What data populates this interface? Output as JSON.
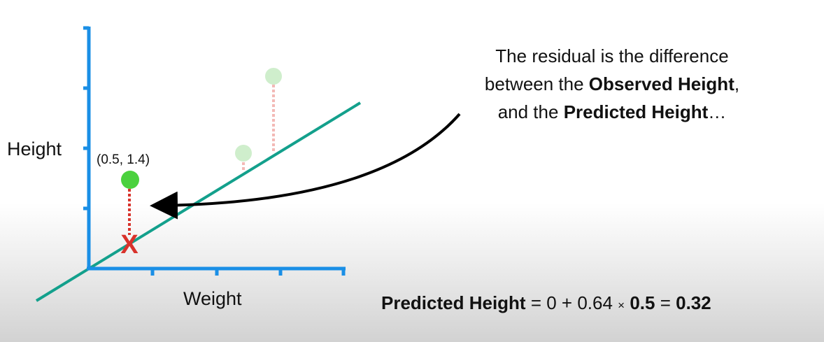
{
  "axes": {
    "y_label": "Height",
    "x_label": "Weight",
    "axis_color": "#1a8fe6"
  },
  "fit_line": {
    "intercept": 0,
    "slope": 0.64,
    "color": "#13a08c"
  },
  "points": {
    "highlighted": {
      "label": "(0.5, 1.4)",
      "color": "#4bd13e"
    },
    "faded_color": "#cfeecc"
  },
  "residual": {
    "color": "#d8322b",
    "faded_color": "#f3b9b6",
    "predicted_marker": "X"
  },
  "annotation": {
    "line1": "The residual is the difference",
    "line2_pre": "between the ",
    "line2_bold": "Observed Height",
    "line2_post": ",",
    "line3_pre": "and the ",
    "line3_bold": "Predicted Height",
    "line3_post": "…"
  },
  "formula": {
    "lhs": "Predicted Height",
    "rhs_1": " = 0 + 0.64 ",
    "times": "×",
    "space": " ",
    "weight": "0.5",
    "equals": " = ",
    "result": "0.32"
  }
}
